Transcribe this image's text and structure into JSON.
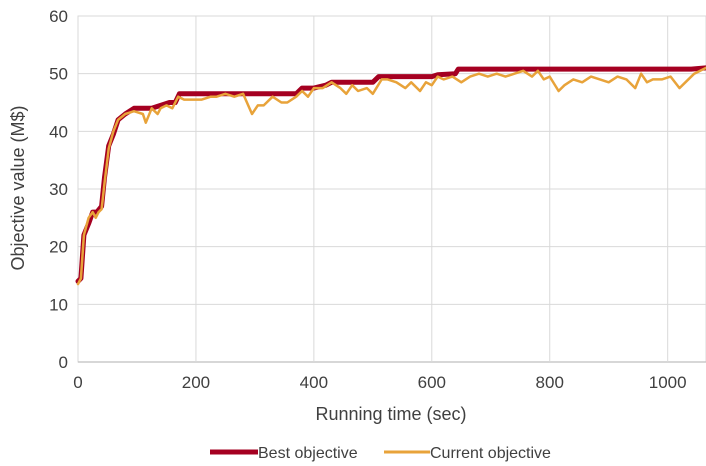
{
  "chart_data": {
    "type": "line",
    "title": "",
    "xlabel": "Running time (sec)",
    "ylabel": "Objective value (M$)",
    "xlim": [
      0,
      1065
    ],
    "ylim": [
      0,
      60
    ],
    "xticks": [
      0,
      200,
      400,
      600,
      800,
      1000
    ],
    "yticks": [
      0,
      10,
      20,
      30,
      40,
      50,
      60
    ],
    "grid": true,
    "legend": "bottom",
    "series": [
      {
        "name": "Best objective",
        "color": "#a50021",
        "x": [
          0,
          5,
          10,
          18,
          25,
          32,
          40,
          45,
          52,
          60,
          68,
          80,
          95,
          100,
          115,
          125,
          140,
          155,
          165,
          172,
          180,
          260,
          300,
          370,
          380,
          400,
          420,
          430,
          440,
          500,
          510,
          600,
          610,
          640,
          645,
          1040,
          1065
        ],
        "y": [
          14.0,
          14.5,
          22.0,
          24.0,
          26.0,
          26.0,
          27.0,
          32.0,
          37.5,
          39.5,
          42.0,
          43.0,
          44.0,
          44.0,
          44.0,
          44.0,
          44.5,
          45.0,
          45.0,
          46.5,
          46.5,
          46.5,
          46.5,
          46.5,
          47.5,
          47.5,
          48.0,
          48.5,
          48.5,
          48.5,
          49.5,
          49.5,
          49.8,
          50.0,
          50.8,
          50.8,
          51.0
        ]
      },
      {
        "name": "Current objective",
        "color": "#e8a33a",
        "x": [
          0,
          5,
          10,
          18,
          25,
          30,
          35,
          40,
          45,
          52,
          60,
          68,
          80,
          95,
          110,
          115,
          125,
          135,
          140,
          150,
          160,
          170,
          180,
          195,
          210,
          225,
          235,
          250,
          265,
          280,
          295,
          305,
          315,
          330,
          345,
          355,
          370,
          380,
          390,
          400,
          415,
          430,
          445,
          455,
          465,
          475,
          490,
          500,
          515,
          525,
          540,
          555,
          565,
          580,
          590,
          600,
          610,
          620,
          635,
          650,
          665,
          680,
          695,
          710,
          725,
          740,
          755,
          770,
          780,
          790,
          800,
          815,
          825,
          840,
          855,
          870,
          885,
          900,
          915,
          930,
          945,
          955,
          965,
          975,
          990,
          1005,
          1020,
          1030,
          1045,
          1065
        ],
        "y": [
          13.5,
          14.5,
          22.0,
          25.0,
          26.0,
          25.0,
          26.0,
          26.5,
          31.0,
          37.0,
          40.0,
          42.0,
          43.0,
          43.5,
          43.0,
          41.5,
          44.0,
          43.0,
          44.0,
          44.5,
          44.0,
          46.0,
          45.5,
          45.5,
          45.5,
          46.0,
          46.0,
          46.5,
          46.0,
          46.5,
          43.0,
          44.5,
          44.5,
          46.0,
          45.0,
          45.0,
          46.0,
          47.0,
          46.0,
          47.5,
          47.5,
          48.5,
          47.5,
          46.5,
          48.0,
          47.0,
          47.5,
          46.5,
          49.0,
          49.0,
          48.5,
          47.5,
          48.5,
          47.0,
          48.5,
          48.0,
          49.5,
          49.0,
          49.5,
          48.5,
          49.5,
          50.0,
          49.5,
          50.0,
          49.5,
          50.0,
          50.5,
          49.5,
          50.5,
          49.0,
          49.5,
          47.0,
          48.0,
          49.0,
          48.5,
          49.5,
          49.0,
          48.5,
          49.5,
          49.0,
          47.5,
          50.0,
          48.5,
          49.0,
          49.0,
          49.5,
          47.5,
          48.5,
          50.0,
          51.0
        ]
      }
    ]
  }
}
